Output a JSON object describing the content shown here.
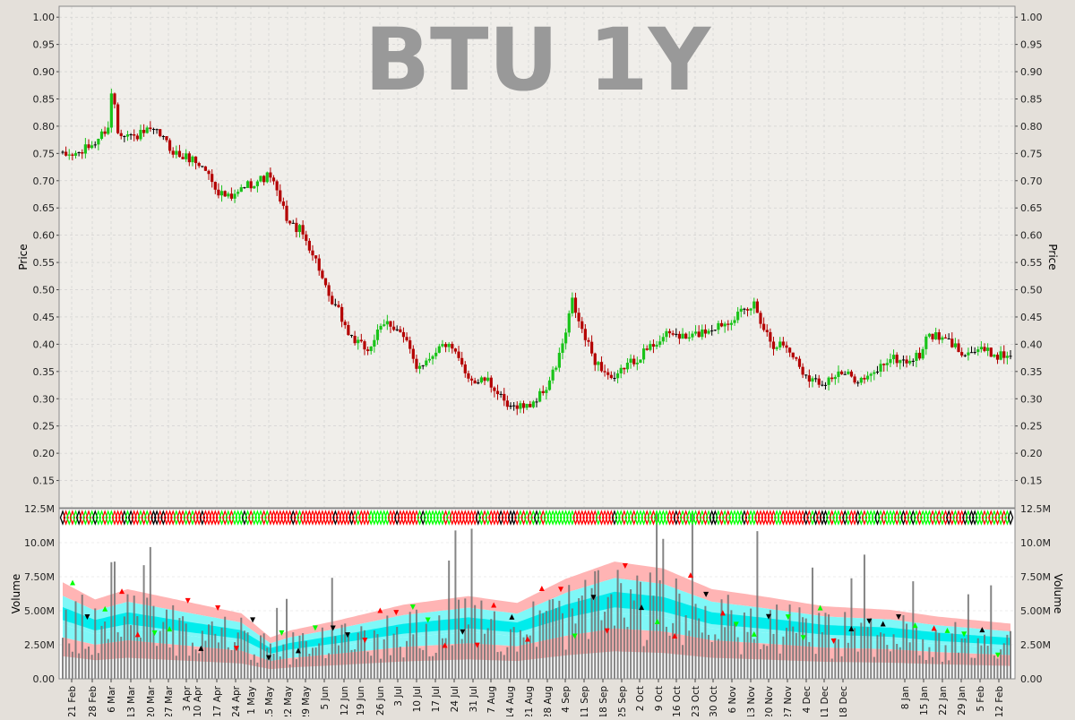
{
  "chart_data": {
    "type": "candlestick",
    "title": "BTU 1Y",
    "price_panel": {
      "ylabel": "Price",
      "ylim": [
        0.1,
        1.02
      ],
      "yticks": [
        "0.15",
        "0.20",
        "0.25",
        "0.30",
        "0.35",
        "0.40",
        "0.45",
        "0.50",
        "0.55",
        "0.60",
        "0.65",
        "0.70",
        "0.75",
        "0.80",
        "0.85",
        "0.90",
        "0.95",
        "1.00"
      ],
      "grid": true,
      "close_series": [
        [
          0,
          0.745
        ],
        [
          5,
          0.75
        ],
        [
          10,
          0.77
        ],
        [
          14,
          0.8
        ],
        [
          18,
          0.79
        ],
        [
          22,
          0.78
        ],
        [
          26,
          0.79
        ],
        [
          30,
          0.785
        ],
        [
          33,
          0.76
        ],
        [
          36,
          0.745
        ],
        [
          40,
          0.74
        ],
        [
          44,
          0.72
        ],
        [
          48,
          0.68
        ],
        [
          52,
          0.665
        ],
        [
          56,
          0.69
        ],
        [
          60,
          0.7
        ],
        [
          64,
          0.71
        ],
        [
          67,
          0.66
        ],
        [
          70,
          0.62
        ],
        [
          73,
          0.61
        ],
        [
          76,
          0.58
        ],
        [
          79,
          0.54
        ],
        [
          82,
          0.48
        ],
        [
          85,
          0.46
        ],
        [
          88,
          0.42
        ],
        [
          91,
          0.4
        ],
        [
          94,
          0.39
        ],
        [
          97,
          0.42
        ],
        [
          100,
          0.44
        ],
        [
          103,
          0.43
        ],
        [
          106,
          0.4
        ],
        [
          109,
          0.36
        ],
        [
          112,
          0.37
        ],
        [
          115,
          0.39
        ],
        [
          118,
          0.4
        ],
        [
          121,
          0.38
        ],
        [
          124,
          0.35
        ],
        [
          127,
          0.33
        ],
        [
          130,
          0.335
        ],
        [
          133,
          0.32
        ],
        [
          136,
          0.29
        ],
        [
          138,
          0.28
        ],
        [
          140,
          0.29
        ],
        [
          143,
          0.285
        ],
        [
          146,
          0.3
        ],
        [
          149,
          0.32
        ],
        [
          152,
          0.36
        ],
        [
          155,
          0.42
        ],
        [
          157,
          0.48
        ],
        [
          159,
          0.44
        ],
        [
          161,
          0.41
        ],
        [
          164,
          0.37
        ],
        [
          167,
          0.35
        ],
        [
          170,
          0.33
        ],
        [
          173,
          0.36
        ],
        [
          176,
          0.37
        ],
        [
          180,
          0.39
        ],
        [
          184,
          0.41
        ],
        [
          188,
          0.42
        ],
        [
          192,
          0.41
        ],
        [
          196,
          0.42
        ],
        [
          200,
          0.43
        ],
        [
          204,
          0.44
        ],
        [
          208,
          0.455
        ],
        [
          211,
          0.46
        ],
        [
          213,
          0.475
        ],
        [
          216,
          0.43
        ],
        [
          219,
          0.4
        ],
        [
          222,
          0.4
        ],
        [
          225,
          0.38
        ],
        [
          228,
          0.35
        ],
        [
          231,
          0.335
        ],
        [
          234,
          0.33
        ],
        [
          237,
          0.34
        ],
        [
          240,
          0.345
        ],
        [
          243,
          0.34
        ],
        [
          246,
          0.335
        ],
        [
          249,
          0.34
        ],
        [
          252,
          0.36
        ],
        [
          255,
          0.375
        ],
        [
          258,
          0.37
        ],
        [
          261,
          0.37
        ],
        [
          264,
          0.38
        ],
        [
          267,
          0.42
        ],
        [
          270,
          0.41
        ],
        [
          273,
          0.405
        ],
        [
          276,
          0.39
        ],
        [
          279,
          0.385
        ],
        [
          282,
          0.39
        ],
        [
          285,
          0.385
        ],
        [
          288,
          0.38
        ],
        [
          292,
          0.38
        ]
      ],
      "n_bars": 293
    },
    "volume_panel": {
      "ylabel": "Volume",
      "ylim": [
        0,
        12500000
      ],
      "yticks": [
        "0.00",
        "2.50M",
        "5.00M",
        "7.50M",
        "10.0M",
        "12.5M"
      ]
    },
    "x_ticks": [
      "21 Feb",
      "28 Feb",
      "6 Mar",
      "13 Mar",
      "20 Mar",
      "27 Mar",
      "3 Apr",
      "10 Apr",
      "17 Apr",
      "24 Apr",
      "1 May",
      "15 May",
      "22 May",
      "29 May",
      "5 Jun",
      "12 Jun",
      "19 Jun",
      "26 Jun",
      "3 Jul",
      "10 Jul",
      "17 Jul",
      "24 Jul",
      "31 Jul",
      "7 Aug",
      "14 Aug",
      "21 Aug",
      "28 Aug",
      "4 Sep",
      "11 Sep",
      "18 Sep",
      "25 Sep",
      "2 Oct",
      "9 Oct",
      "16 Oct",
      "23 Oct",
      "30 Oct",
      "6 Nov",
      "13 Nov",
      "20 Nov",
      "27 Nov",
      "4 Dec",
      "11 Dec",
      "18 Dec",
      "8 Jan",
      "15 Jan",
      "22 Jan",
      "29 Jan",
      "5 Feb",
      "12 Feb"
    ],
    "colors": {
      "up": "#19c319",
      "down": "#b40000",
      "flat": "#000000",
      "plot_bg": "#f0eeea",
      "grid": "#cccccc",
      "title": "#999999",
      "band_outer": "#ffb4b4",
      "band_mid": "#7ff7f7",
      "band_inner": "#00ecec",
      "volume_bar": "#707070",
      "marker_green": "#00ff00",
      "marker_red": "#ff0000"
    }
  }
}
